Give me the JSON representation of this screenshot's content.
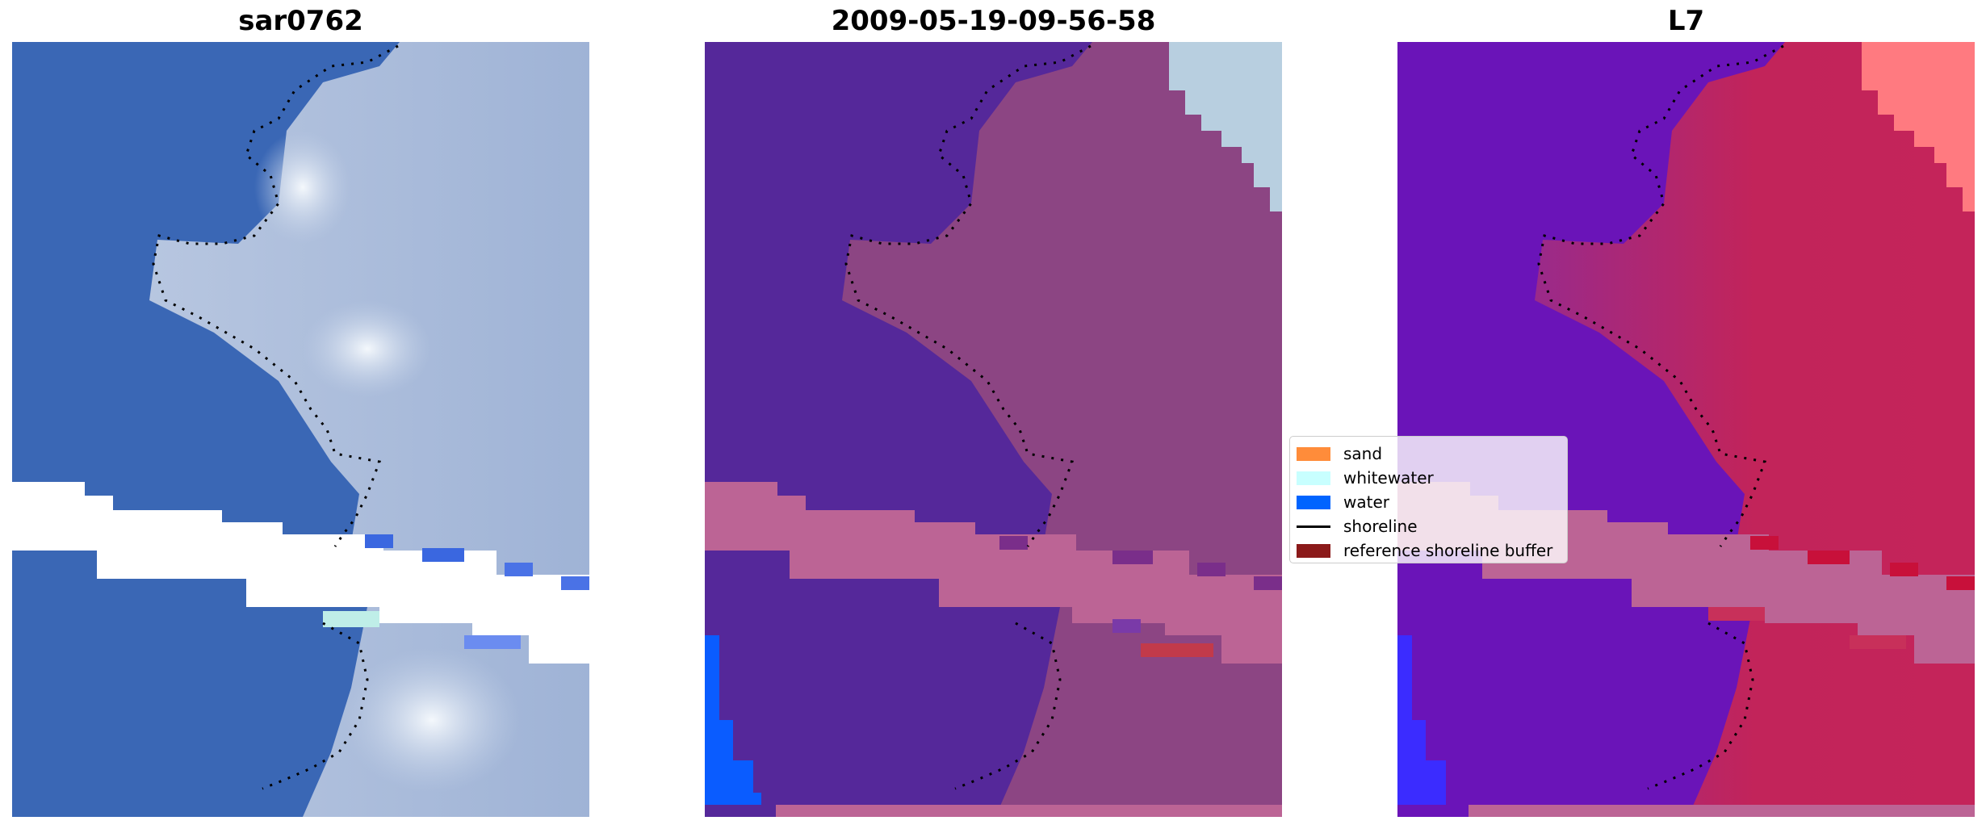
{
  "panels": [
    {
      "title": "sar0762",
      "style": "rgb"
    },
    {
      "title": "2009-05-19-09-56-58",
      "style": "classified"
    },
    {
      "title": "L7",
      "style": "index"
    }
  ],
  "legend": {
    "items": [
      {
        "label": "sand",
        "color": "#ff8c3a",
        "kind": "patch"
      },
      {
        "label": "whitewater",
        "color": "#c8ffff",
        "kind": "patch"
      },
      {
        "label": "water",
        "color": "#0064ff",
        "kind": "patch"
      },
      {
        "label": "shoreline",
        "color": "#000000",
        "kind": "line"
      },
      {
        "label": "reference shoreline buffer",
        "color": "#8b1a1a",
        "kind": "patch"
      }
    ]
  },
  "colors": {
    "rgb_water": "#3a67b5",
    "rgb_land": "#a9b9d8",
    "rgb_light": "#d8e4ee",
    "class_water": "#55289a",
    "class_land": "#8c4583",
    "class_buffer": "#bc6495",
    "index_water": "#6a14b8",
    "index_land": "#c2245a",
    "index_pink": "#ff7a80",
    "no_data": "#ffffff",
    "blue_edge": "#0a5cff"
  }
}
